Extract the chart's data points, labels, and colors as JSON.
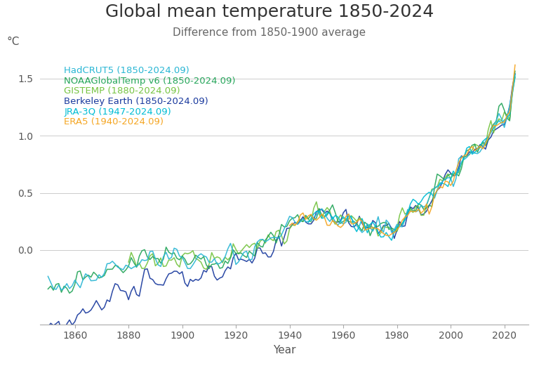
{
  "title": "Global mean temperature 1850-2024",
  "subtitle": "Difference from 1850-1900 average",
  "xlabel": "Year",
  "ylabel": "°C",
  "ylim": [
    -0.65,
    1.75
  ],
  "xlim": [
    1847,
    2029
  ],
  "background_color": "#ffffff",
  "grid_color": "#cccccc",
  "datasets": [
    {
      "name": "HadCRUT5 (1850-2024.09)",
      "color": "#29b6d4",
      "start": 1850,
      "lw": 1.1,
      "zorder": 5
    },
    {
      "name": "NOAAGlobalTemp v6 (1850-2024.09)",
      "color": "#26a65b",
      "start": 1850,
      "lw": 1.1,
      "zorder": 4
    },
    {
      "name": "GISTEMP (1880-2024.09)",
      "color": "#76c442",
      "start": 1880,
      "lw": 1.1,
      "zorder": 3
    },
    {
      "name": "Berkeley Earth (1850-2024.09)",
      "color": "#1a3a9e",
      "start": 1850,
      "lw": 1.1,
      "zorder": 2
    },
    {
      "name": "JRA-3Q (1947-2024.09)",
      "color": "#00bcd4",
      "start": 1947,
      "lw": 1.1,
      "zorder": 6
    },
    {
      "name": "ERA5 (1940-2024.09)",
      "color": "#f5a623",
      "start": 1940,
      "lw": 1.1,
      "zorder": 7
    }
  ],
  "title_fontsize": 18,
  "subtitle_fontsize": 11,
  "legend_fontsize": 9.5,
  "axis_label_fontsize": 11,
  "tick_fontsize": 10,
  "yticks": [
    0.0,
    0.5,
    1.0,
    1.5
  ],
  "xticks": [
    1860,
    1880,
    1900,
    1920,
    1940,
    1960,
    1980,
    2000,
    2020
  ]
}
